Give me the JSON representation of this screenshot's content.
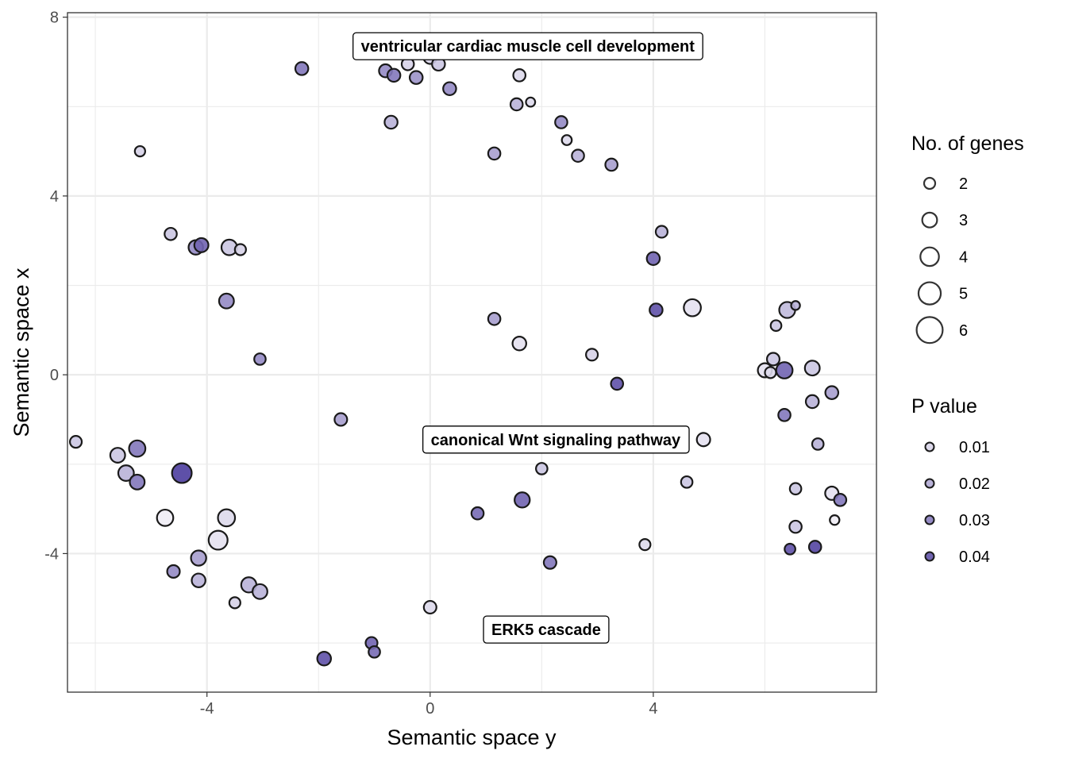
{
  "chart_data": {
    "type": "scatter",
    "title": "",
    "xlabel": "Semantic space y",
    "ylabel": "Semantic space x",
    "xlim": [
      -6.5,
      8.0
    ],
    "ylim": [
      -7.1,
      8.1
    ],
    "xticks": [
      -4,
      0,
      4
    ],
    "yticks": [
      -4,
      0,
      4,
      8
    ],
    "x_tick_labels": [
      "-4",
      "0",
      "4"
    ],
    "y_tick_labels": [
      "-4",
      "0",
      "4",
      "8"
    ],
    "grid": true,
    "legend_position": "right",
    "size_legend": {
      "title": "No. of genes",
      "values": [
        2,
        3,
        4,
        5,
        6
      ],
      "labels": [
        "2",
        "3",
        "4",
        "5",
        "6"
      ]
    },
    "color_legend": {
      "title": "P value",
      "values": [
        0.01,
        0.02,
        0.03,
        0.04
      ],
      "labels": [
        "0.01",
        "0.02",
        "0.03",
        "0.04"
      ]
    },
    "color_scale": {
      "low": "#efedf5",
      "high": "#4d3d9e"
    },
    "annotations": [
      {
        "text": "ventricular cardiac muscle cell development",
        "x": 1.75,
        "y": 7.35
      },
      {
        "text": "canonical Wnt signaling pathway",
        "x": 2.25,
        "y": -1.45
      },
      {
        "text": "ERK5 cascade",
        "x": 2.08,
        "y": -5.7
      }
    ],
    "points": [
      {
        "x": -2.3,
        "y": 6.85,
        "genes": 2.5,
        "p": 0.035
      },
      {
        "x": -0.8,
        "y": 6.8,
        "genes": 2.5,
        "p": 0.03
      },
      {
        "x": -0.65,
        "y": 6.7,
        "genes": 2.5,
        "p": 0.035
      },
      {
        "x": -0.4,
        "y": 6.95,
        "genes": 2.3,
        "p": 0.012
      },
      {
        "x": -0.25,
        "y": 6.65,
        "genes": 2.5,
        "p": 0.028
      },
      {
        "x": 0.0,
        "y": 7.1,
        "genes": 2.5,
        "p": 0.012
      },
      {
        "x": 0.15,
        "y": 6.95,
        "genes": 2.5,
        "p": 0.015
      },
      {
        "x": 0.35,
        "y": 6.4,
        "genes": 2.5,
        "p": 0.03
      },
      {
        "x": 1.6,
        "y": 6.7,
        "genes": 2.3,
        "p": 0.01
      },
      {
        "x": 1.55,
        "y": 6.05,
        "genes": 2.3,
        "p": 0.02
      },
      {
        "x": 1.8,
        "y": 6.1,
        "genes": 1.5,
        "p": 0.01
      },
      {
        "x": -0.7,
        "y": 5.65,
        "genes": 2.5,
        "p": 0.02
      },
      {
        "x": 2.35,
        "y": 5.65,
        "genes": 2.3,
        "p": 0.03
      },
      {
        "x": 2.45,
        "y": 5.25,
        "genes": 1.7,
        "p": 0.01
      },
      {
        "x": 2.65,
        "y": 4.9,
        "genes": 2.3,
        "p": 0.02
      },
      {
        "x": 1.15,
        "y": 4.95,
        "genes": 2.3,
        "p": 0.025
      },
      {
        "x": 3.25,
        "y": 4.7,
        "genes": 2.3,
        "p": 0.025
      },
      {
        "x": -5.2,
        "y": 5.0,
        "genes": 1.8,
        "p": 0.012
      },
      {
        "x": -4.65,
        "y": 3.15,
        "genes": 2.3,
        "p": 0.015
      },
      {
        "x": -4.2,
        "y": 2.85,
        "genes": 2.9,
        "p": 0.03
      },
      {
        "x": -4.1,
        "y": 2.9,
        "genes": 2.8,
        "p": 0.04
      },
      {
        "x": -3.6,
        "y": 2.85,
        "genes": 3.2,
        "p": 0.015
      },
      {
        "x": -3.4,
        "y": 2.8,
        "genes": 2.0,
        "p": 0.012
      },
      {
        "x": -3.65,
        "y": 1.65,
        "genes": 3.0,
        "p": 0.03
      },
      {
        "x": -3.05,
        "y": 0.35,
        "genes": 2.1,
        "p": 0.03
      },
      {
        "x": 4.15,
        "y": 3.2,
        "genes": 2.2,
        "p": 0.02
      },
      {
        "x": 4.0,
        "y": 2.6,
        "genes": 2.5,
        "p": 0.04
      },
      {
        "x": 4.05,
        "y": 1.45,
        "genes": 2.5,
        "p": 0.045
      },
      {
        "x": 4.7,
        "y": 1.5,
        "genes": 3.6,
        "p": 0.008
      },
      {
        "x": 1.15,
        "y": 1.25,
        "genes": 2.3,
        "p": 0.025
      },
      {
        "x": 1.6,
        "y": 0.7,
        "genes": 2.7,
        "p": 0.008
      },
      {
        "x": 2.9,
        "y": 0.45,
        "genes": 2.2,
        "p": 0.012
      },
      {
        "x": 3.35,
        "y": -0.2,
        "genes": 2.3,
        "p": 0.045
      },
      {
        "x": 6.4,
        "y": 1.45,
        "genes": 3.3,
        "p": 0.018
      },
      {
        "x": 6.55,
        "y": 1.55,
        "genes": 1.4,
        "p": 0.02
      },
      {
        "x": 6.2,
        "y": 1.1,
        "genes": 1.9,
        "p": 0.015
      },
      {
        "x": 6.0,
        "y": 0.1,
        "genes": 2.8,
        "p": 0.008
      },
      {
        "x": 6.15,
        "y": 0.35,
        "genes": 2.4,
        "p": 0.015
      },
      {
        "x": 6.1,
        "y": 0.05,
        "genes": 2.0,
        "p": 0.01
      },
      {
        "x": 6.35,
        "y": 0.1,
        "genes": 3.4,
        "p": 0.04
      },
      {
        "x": 6.85,
        "y": 0.15,
        "genes": 3.0,
        "p": 0.015
      },
      {
        "x": 7.2,
        "y": -0.4,
        "genes": 2.5,
        "p": 0.025
      },
      {
        "x": 6.85,
        "y": -0.6,
        "genes": 2.5,
        "p": 0.02
      },
      {
        "x": 6.35,
        "y": -0.9,
        "genes": 2.3,
        "p": 0.035
      },
      {
        "x": 6.95,
        "y": -1.55,
        "genes": 2.1,
        "p": 0.02
      },
      {
        "x": 6.55,
        "y": -2.55,
        "genes": 2.1,
        "p": 0.015
      },
      {
        "x": 7.2,
        "y": -2.65,
        "genes": 2.6,
        "p": 0.008
      },
      {
        "x": 7.35,
        "y": -2.8,
        "genes": 2.3,
        "p": 0.035
      },
      {
        "x": 7.25,
        "y": -3.25,
        "genes": 1.6,
        "p": 0.005
      },
      {
        "x": 6.55,
        "y": -3.4,
        "genes": 2.3,
        "p": 0.015
      },
      {
        "x": 6.45,
        "y": -3.9,
        "genes": 1.9,
        "p": 0.045
      },
      {
        "x": 6.9,
        "y": -3.85,
        "genes": 2.3,
        "p": 0.048
      },
      {
        "x": -1.6,
        "y": -1.0,
        "genes": 2.4,
        "p": 0.025
      },
      {
        "x": 4.9,
        "y": -1.45,
        "genes": 2.6,
        "p": 0.008
      },
      {
        "x": 4.6,
        "y": -2.4,
        "genes": 2.1,
        "p": 0.015
      },
      {
        "x": 2.0,
        "y": -2.1,
        "genes": 2.1,
        "p": 0.015
      },
      {
        "x": 1.65,
        "y": -2.8,
        "genes": 3.1,
        "p": 0.04
      },
      {
        "x": 0.85,
        "y": -3.1,
        "genes": 2.3,
        "p": 0.038
      },
      {
        "x": 3.85,
        "y": -3.8,
        "genes": 2.0,
        "p": 0.01
      },
      {
        "x": 2.15,
        "y": -4.2,
        "genes": 2.4,
        "p": 0.035
      },
      {
        "x": 0.0,
        "y": -5.2,
        "genes": 2.4,
        "p": 0.01
      },
      {
        "x": -1.05,
        "y": -6.0,
        "genes": 2.2,
        "p": 0.04
      },
      {
        "x": -1.0,
        "y": -6.2,
        "genes": 2.1,
        "p": 0.038
      },
      {
        "x": -1.9,
        "y": -6.35,
        "genes": 2.7,
        "p": 0.045
      },
      {
        "x": -6.35,
        "y": -1.5,
        "genes": 2.2,
        "p": 0.015
      },
      {
        "x": -5.6,
        "y": -1.8,
        "genes": 3.0,
        "p": 0.015
      },
      {
        "x": -5.25,
        "y": -1.65,
        "genes": 3.4,
        "p": 0.035
      },
      {
        "x": -5.45,
        "y": -2.2,
        "genes": 3.2,
        "p": 0.02
      },
      {
        "x": -5.25,
        "y": -2.4,
        "genes": 3.0,
        "p": 0.035
      },
      {
        "x": -4.45,
        "y": -2.2,
        "genes": 4.3,
        "p": 0.05
      },
      {
        "x": -4.75,
        "y": -3.2,
        "genes": 3.4,
        "p": 0.002
      },
      {
        "x": -3.65,
        "y": -3.2,
        "genes": 3.6,
        "p": 0.01
      },
      {
        "x": -3.8,
        "y": -3.7,
        "genes": 4.1,
        "p": 0.008
      },
      {
        "x": -4.15,
        "y": -4.1,
        "genes": 3.1,
        "p": 0.025
      },
      {
        "x": -4.6,
        "y": -4.4,
        "genes": 2.4,
        "p": 0.03
      },
      {
        "x": -4.15,
        "y": -4.6,
        "genes": 2.7,
        "p": 0.02
      },
      {
        "x": -3.25,
        "y": -4.7,
        "genes": 3.1,
        "p": 0.02
      },
      {
        "x": -3.05,
        "y": -4.85,
        "genes": 3.0,
        "p": 0.02
      },
      {
        "x": -3.5,
        "y": -5.1,
        "genes": 2.0,
        "p": 0.012
      }
    ]
  }
}
